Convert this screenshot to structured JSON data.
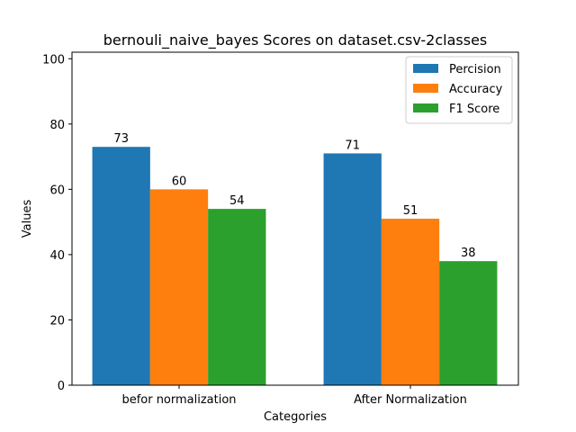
{
  "chart_data": {
    "type": "bar",
    "title": "bernouli_naive_bayes Scores on dataset.csv-2classes",
    "xlabel": "Categories",
    "ylabel": "Values",
    "categories": [
      "befor normalization",
      "After Normalization"
    ],
    "series": [
      {
        "name": "Percision",
        "values": [
          73,
          71
        ],
        "color": "#1f77b4"
      },
      {
        "name": "Accuracy",
        "values": [
          60,
          51
        ],
        "color": "#ff7f0e"
      },
      {
        "name": "F1 Score",
        "values": [
          54,
          38
        ],
        "color": "#2ca02c"
      }
    ],
    "ylim": [
      0,
      102
    ],
    "yticks": [
      0,
      20,
      40,
      60,
      80,
      100
    ],
    "grid": false,
    "legend_position": "top-right",
    "bar_labels": true
  }
}
